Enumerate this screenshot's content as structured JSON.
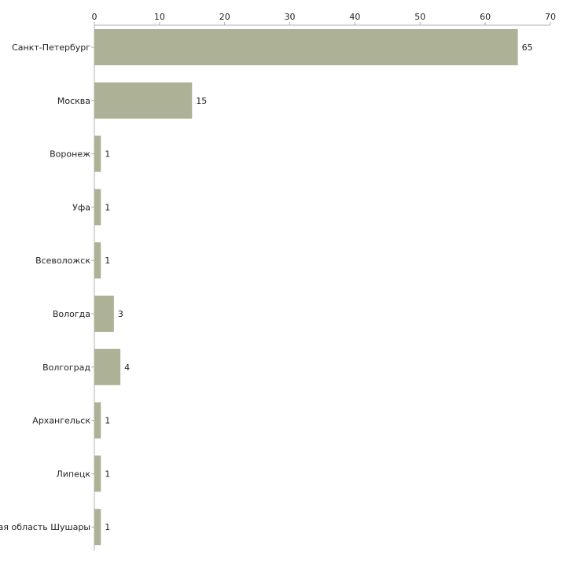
{
  "chart_data": {
    "type": "bar",
    "orientation": "horizontal",
    "title": "",
    "xlabel": "",
    "ylabel": "",
    "xlim": [
      0,
      70
    ],
    "ticks": [
      0,
      10,
      20,
      30,
      40,
      50,
      60,
      70
    ],
    "categories": [
      "Санкт-Петербург",
      "Москва",
      "Воронеж",
      "Уфа",
      "Всеволожск",
      "Вологда",
      "Волгоград",
      "Архангельск",
      "Липецк",
      "Ленинградская область Шушары"
    ],
    "values": [
      65,
      15,
      1,
      1,
      1,
      3,
      4,
      1,
      1,
      1
    ],
    "bar_color": "#adb296",
    "axis_color": "#b0b0b0",
    "grid": false,
    "legend": "none"
  }
}
